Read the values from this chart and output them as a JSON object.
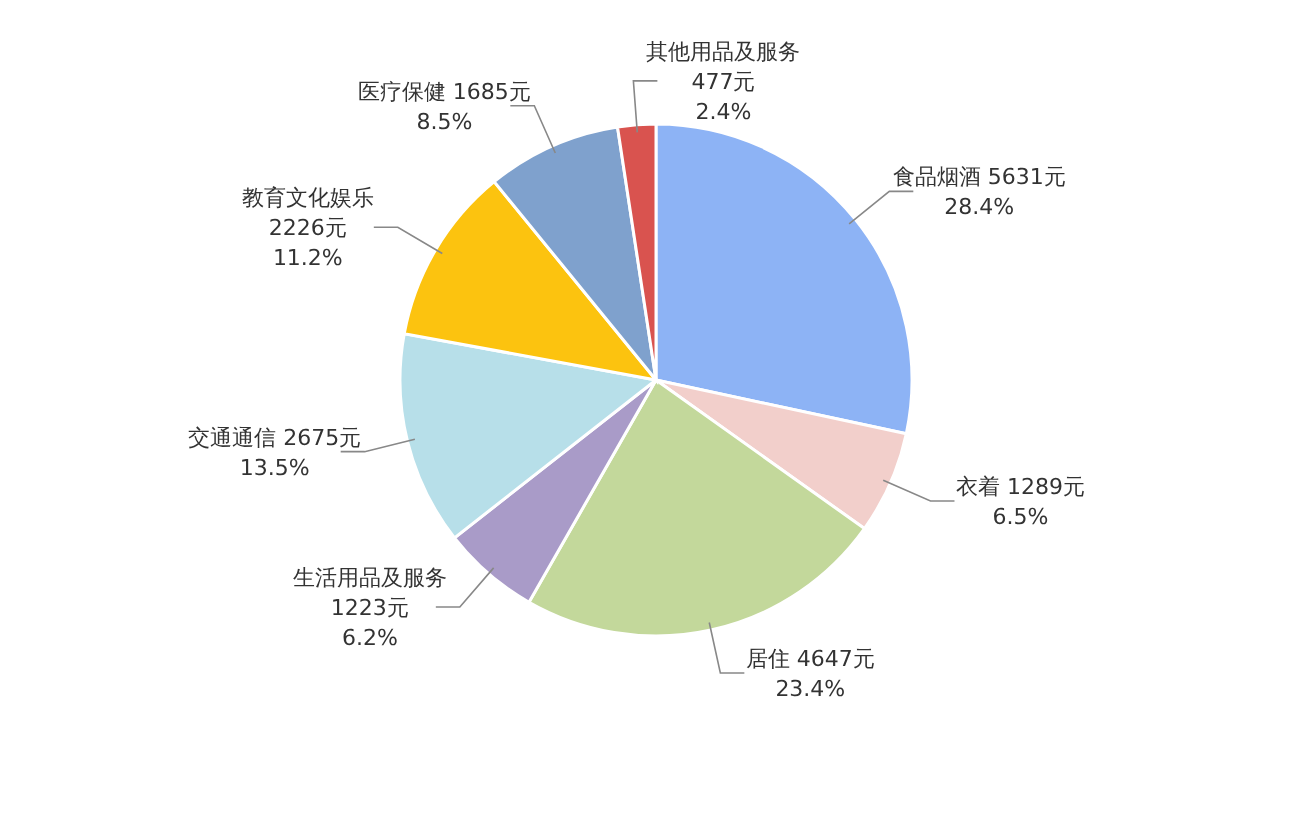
{
  "chart_data": {
    "type": "pie",
    "categories": [
      "食品烟酒",
      "衣着",
      "居住",
      "生活用品及服务",
      "交通通信",
      "教育文化娱乐",
      "医疗保健",
      "其他用品及服务"
    ],
    "values": [
      5631,
      1289,
      4647,
      1223,
      2675,
      2226,
      1685,
      477
    ],
    "value_labels": [
      "5631元\n28.4%",
      "1289元\n6.5%",
      "4647元\n23.4%",
      "1223元\n6.2%",
      "2675元\n13.5%",
      "2226元\n11.2%",
      "1685元\n8.5%",
      "477元\n2.4%"
    ],
    "colors": [
      "#8db3f5",
      "#f2cfcb",
      "#c3d89b",
      "#a99bc8",
      "#b7dfe9",
      "#fcc30f",
      "#7fa1cd",
      "#d9534f"
    ]
  }
}
